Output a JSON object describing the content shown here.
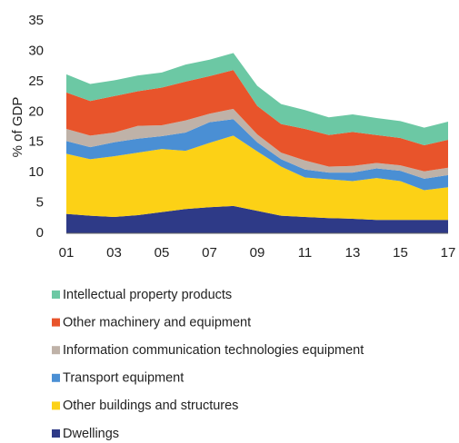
{
  "chart_data": {
    "type": "stacked-area",
    "y_label": "% of GDP",
    "categories": [
      "01",
      null,
      "03",
      null,
      "05",
      null,
      "07",
      null,
      "09",
      null,
      "11",
      null,
      "13",
      null,
      "15",
      null,
      "17"
    ],
    "ylim": [
      0,
      35
    ],
    "yticks": [
      0,
      5,
      10,
      15,
      20,
      25,
      30,
      35
    ],
    "grid": false,
    "series": [
      {
        "name": "Dwellings",
        "color": "#2e3a87",
        "values": [
          3.2,
          2.9,
          2.7,
          3.0,
          3.5,
          4.0,
          4.3,
          4.5,
          3.7,
          2.9,
          2.7,
          2.5,
          2.4,
          2.2,
          2.2,
          2.2,
          2.2
        ]
      },
      {
        "name": "Other buildings and structures",
        "color": "#fcd116",
        "values": [
          9.9,
          9.3,
          10.0,
          10.3,
          10.4,
          9.6,
          10.6,
          11.6,
          9.8,
          8.1,
          6.5,
          6.4,
          6.2,
          6.9,
          6.4,
          4.9,
          5.4
        ]
      },
      {
        "name": "Transport equipment",
        "color": "#4a8fd4",
        "values": [
          2.1,
          2.0,
          2.3,
          2.3,
          2.1,
          3.0,
          3.4,
          2.7,
          1.5,
          1.2,
          1.3,
          1.1,
          1.4,
          1.6,
          1.7,
          1.9,
          2.0
        ]
      },
      {
        "name": "Information communication technologies equipment",
        "color": "#bfb2a8",
        "values": [
          2.0,
          1.9,
          1.6,
          2.1,
          1.8,
          2.0,
          1.4,
          1.7,
          1.3,
          1.1,
          1.5,
          1.0,
          1.1,
          0.9,
          0.9,
          1.2,
          1.2
        ]
      },
      {
        "name": "Other machinery and equipment",
        "color": "#e8542b",
        "values": [
          6.0,
          5.7,
          6.0,
          5.7,
          6.2,
          6.4,
          6.2,
          6.4,
          4.7,
          4.7,
          5.2,
          5.2,
          5.6,
          4.6,
          4.5,
          4.3,
          4.6
        ]
      },
      {
        "name": "Intellectual property products",
        "color": "#6cc8a4",
        "values": [
          3.0,
          2.8,
          2.6,
          2.6,
          2.5,
          2.8,
          2.7,
          2.8,
          3.3,
          3.3,
          3.1,
          2.9,
          2.9,
          2.8,
          2.8,
          2.9,
          3.0
        ]
      }
    ]
  }
}
